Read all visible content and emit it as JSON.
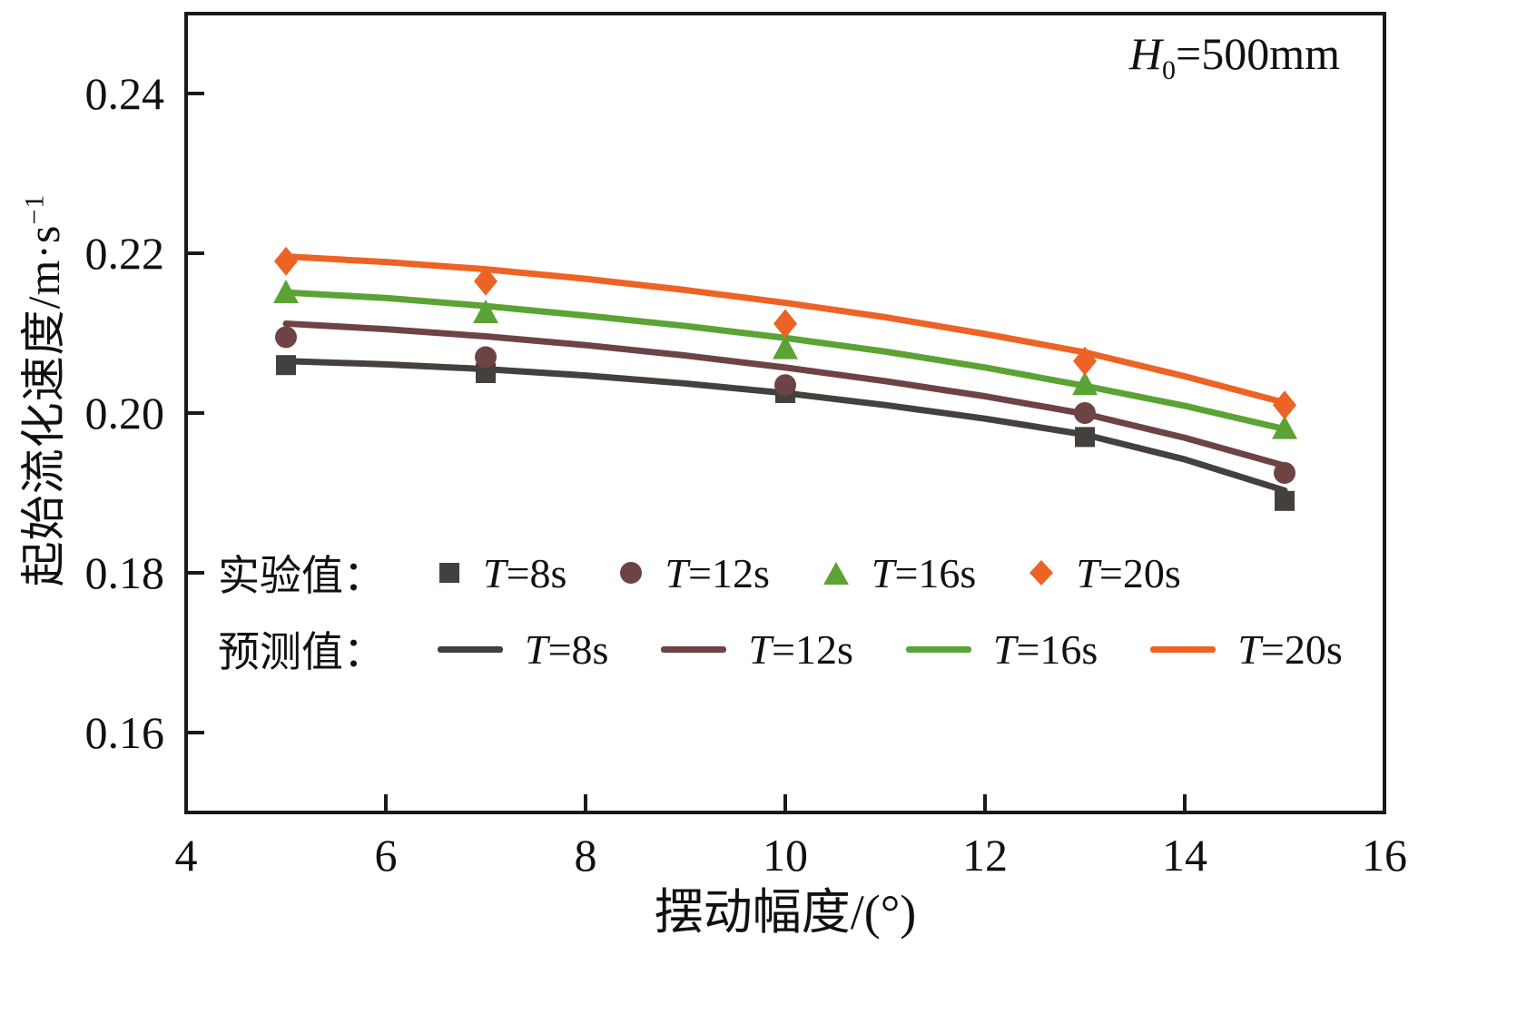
{
  "chart_data": {
    "type": "line+scatter",
    "title": "",
    "xlabel": "摆动幅度/(°)",
    "ylabel": "起始流化速度/m·s⁻¹",
    "ylabel_main": "起始流化速度/m·s",
    "ylabel_sup": "−1",
    "xlim": [
      4,
      16
    ],
    "ylim": [
      0.15,
      0.25
    ],
    "x_ticks": [
      4,
      6,
      8,
      10,
      12,
      14,
      16
    ],
    "y_ticks": [
      0.16,
      0.18,
      0.2,
      0.22,
      0.24
    ],
    "y_tick_labels": [
      "0.16",
      "0.18",
      "0.20",
      "0.22",
      "0.24"
    ],
    "grid": false,
    "legend_position": "inside lower-left",
    "annotation": {
      "variable": "H",
      "subscript": "0",
      "value": "=500mm"
    },
    "legend": {
      "experimental_caption": "实验值：",
      "predicted_caption": "预测值："
    },
    "scatter_x": [
      5,
      7,
      10,
      13,
      15
    ],
    "line_x": [
      5,
      6,
      7,
      8,
      9,
      10,
      11,
      12,
      13,
      14,
      15
    ],
    "series": [
      {
        "label": "T=8s",
        "tvar": "T",
        "suffix": "=8s",
        "color": "#43403e",
        "marker": "square",
        "experimental": [
          0.206,
          0.205,
          0.2025,
          0.197,
          0.189
        ],
        "predicted": [
          0.2065,
          0.2061,
          0.2055,
          0.2047,
          0.2037,
          0.2025,
          0.201,
          0.1993,
          0.1973,
          0.1942,
          0.1903
        ]
      },
      {
        "label": "T=12s",
        "tvar": "T",
        "suffix": "=12s",
        "color": "#6e4345",
        "marker": "circle",
        "experimental": [
          0.2095,
          0.207,
          0.2035,
          0.2,
          0.1925
        ],
        "predicted": [
          0.2112,
          0.2105,
          0.2096,
          0.2085,
          0.2072,
          0.2057,
          0.204,
          0.2021,
          0.1999,
          0.1969,
          0.1934
        ]
      },
      {
        "label": "T=16s",
        "tvar": "T",
        "suffix": "=16s",
        "color": "#5ba334",
        "marker": "triangle",
        "experimental": [
          0.215,
          0.2125,
          0.208,
          0.2035,
          0.198
        ],
        "predicted": [
          0.2151,
          0.2144,
          0.2134,
          0.2122,
          0.2109,
          0.2094,
          0.2077,
          0.2057,
          0.2034,
          0.2009,
          0.198
        ]
      },
      {
        "label": "T=20s",
        "tvar": "T",
        "suffix": "=20s",
        "color": "#ed6325",
        "marker": "diamond",
        "experimental": [
          0.219,
          0.2165,
          0.2112,
          0.2065,
          0.201
        ],
        "predicted": [
          0.2196,
          0.2189,
          0.218,
          0.2168,
          0.2154,
          0.2138,
          0.212,
          0.2099,
          0.2076,
          0.2046,
          0.2013
        ]
      }
    ]
  }
}
